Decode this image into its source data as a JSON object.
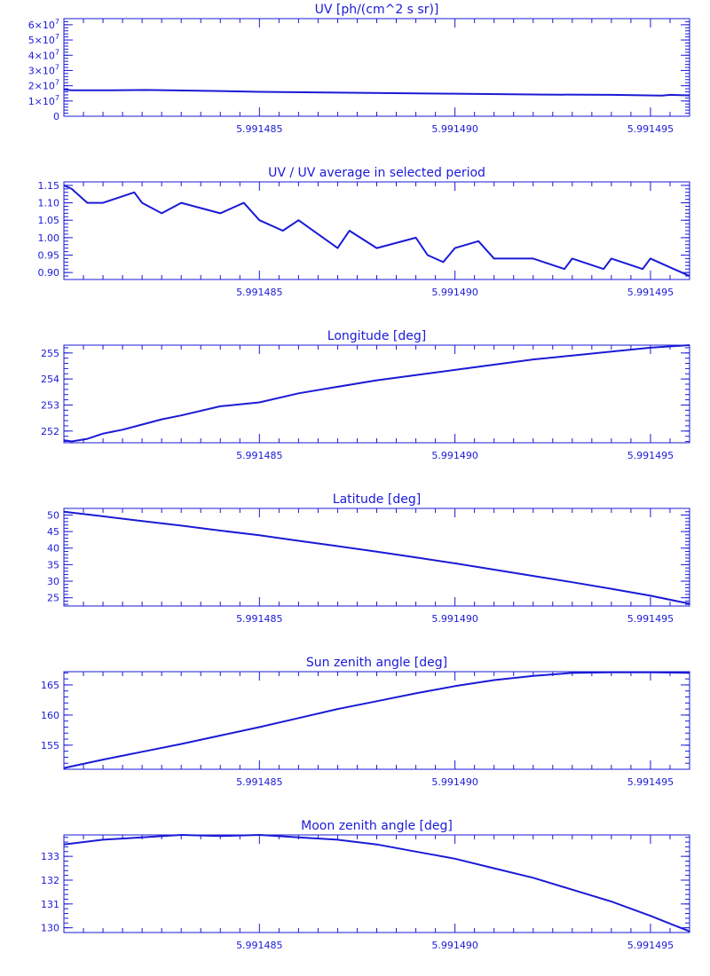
{
  "chart_data": [
    {
      "type": "line",
      "title": "UV [ph/(cm^2 s sr)]",
      "xlim": [
        5.99148,
        5.991496
      ],
      "ylim": [
        0,
        64000000.0
      ],
      "x_ticks": [
        {
          "value": 5.991485,
          "label": "5.991485"
        },
        {
          "value": 5.99149,
          "label": "5.991490"
        },
        {
          "value": 5.991495,
          "label": "5.991495"
        }
      ],
      "y_ticks": [
        {
          "value": 0,
          "label": "0"
        },
        {
          "value": 10000000.0,
          "label": "1×10^7"
        },
        {
          "value": 20000000.0,
          "label": "2×10^7"
        },
        {
          "value": 30000000.0,
          "label": "3×10^7"
        },
        {
          "value": 40000000.0,
          "label": "4×10^7"
        },
        {
          "value": 50000000.0,
          "label": "5×10^7"
        },
        {
          "value": 60000000.0,
          "label": "6×10^7"
        }
      ],
      "x": [
        5.99148,
        5.9914802,
        5.9914811,
        5.9914821,
        5.991484,
        5.991485,
        5.991487,
        5.991489,
        5.99149,
        5.9914923,
        5.991494,
        5.9914953,
        5.9914955,
        5.991496
      ],
      "y": [
        17500000.0,
        17000000.0,
        17000000.0,
        17200000.0,
        16500000.0,
        16000000.0,
        15500000.0,
        15000000.0,
        14800000.0,
        14200000.0,
        14000000.0,
        13500000.0,
        14000000.0,
        13700000.0
      ]
    },
    {
      "type": "line",
      "title": "UV / UV average in selected period",
      "xlim": [
        5.99148,
        5.991496
      ],
      "ylim": [
        0.88,
        1.16
      ],
      "x_ticks": [
        {
          "value": 5.991485,
          "label": "5.991485"
        },
        {
          "value": 5.99149,
          "label": "5.991490"
        },
        {
          "value": 5.991495,
          "label": "5.991495"
        }
      ],
      "y_ticks": [
        {
          "value": 0.9,
          "label": "0.90"
        },
        {
          "value": 0.95,
          "label": "0.95"
        },
        {
          "value": 1.0,
          "label": "1.00"
        },
        {
          "value": 1.05,
          "label": "1.05"
        },
        {
          "value": 1.1,
          "label": "1.10"
        },
        {
          "value": 1.15,
          "label": "1.15"
        }
      ],
      "x": [
        5.99148,
        5.9914802,
        5.9914806,
        5.991481,
        5.9914818,
        5.991482,
        5.9914825,
        5.991483,
        5.991484,
        5.9914846,
        5.991485,
        5.9914856,
        5.991486,
        5.991487,
        5.9914873,
        5.991488,
        5.991489,
        5.9914893,
        5.9914897,
        5.99149,
        5.9914906,
        5.991491,
        5.991492,
        5.9914928,
        5.991493,
        5.9914938,
        5.991494,
        5.9914948,
        5.991495,
        5.991496
      ],
      "y": [
        1.15,
        1.14,
        1.1,
        1.1,
        1.13,
        1.1,
        1.07,
        1.1,
        1.07,
        1.1,
        1.05,
        1.02,
        1.05,
        0.97,
        1.02,
        0.97,
        1.0,
        0.95,
        0.93,
        0.97,
        0.99,
        0.94,
        0.94,
        0.91,
        0.94,
        0.91,
        0.94,
        0.91,
        0.94,
        0.89
      ]
    },
    {
      "type": "line",
      "title": "Longitude [deg]",
      "xlim": [
        5.99148,
        5.991496
      ],
      "ylim": [
        251.55,
        255.3
      ],
      "x_ticks": [
        {
          "value": 5.991485,
          "label": "5.991485"
        },
        {
          "value": 5.99149,
          "label": "5.991490"
        },
        {
          "value": 5.991495,
          "label": "5.991495"
        }
      ],
      "y_ticks": [
        {
          "value": 252,
          "label": "252"
        },
        {
          "value": 253,
          "label": "253"
        },
        {
          "value": 254,
          "label": "254"
        },
        {
          "value": 255,
          "label": "255"
        }
      ],
      "x": [
        5.99148,
        5.9914802,
        5.9914806,
        5.991481,
        5.9914815,
        5.991482,
        5.9914825,
        5.991483,
        5.991484,
        5.991485,
        5.991486,
        5.991487,
        5.991488,
        5.991489,
        5.99149,
        5.991491,
        5.991492,
        5.991493,
        5.991494,
        5.991495,
        5.991496
      ],
      "y": [
        251.65,
        251.6,
        251.7,
        251.9,
        252.05,
        252.25,
        252.45,
        252.6,
        252.95,
        253.1,
        253.45,
        253.7,
        253.95,
        254.15,
        254.35,
        254.55,
        254.75,
        254.9,
        255.05,
        255.2,
        255.3
      ]
    },
    {
      "type": "line",
      "title": "Latitude [deg]",
      "xlim": [
        5.99148,
        5.991496
      ],
      "ylim": [
        22.5,
        52
      ],
      "x_ticks": [
        {
          "value": 5.991485,
          "label": "5.991485"
        },
        {
          "value": 5.99149,
          "label": "5.991490"
        },
        {
          "value": 5.991495,
          "label": "5.991495"
        }
      ],
      "y_ticks": [
        {
          "value": 25,
          "label": "25"
        },
        {
          "value": 30,
          "label": "30"
        },
        {
          "value": 35,
          "label": "35"
        },
        {
          "value": 40,
          "label": "40"
        },
        {
          "value": 45,
          "label": "45"
        },
        {
          "value": 50,
          "label": "50"
        }
      ],
      "x": [
        5.99148,
        5.991481,
        5.991482,
        5.991483,
        5.991484,
        5.991485,
        5.991486,
        5.991487,
        5.991488,
        5.991489,
        5.99149,
        5.991491,
        5.991492,
        5.991493,
        5.991494,
        5.991495,
        5.991496
      ],
      "y": [
        51,
        49.6,
        48.2,
        46.8,
        45.3,
        43.9,
        42.2,
        40.6,
        38.9,
        37.2,
        35.4,
        33.5,
        31.6,
        29.7,
        27.7,
        25.6,
        23.2
      ]
    },
    {
      "type": "line",
      "title": "Sun zenith angle [deg]",
      "xlim": [
        5.99148,
        5.991496
      ],
      "ylim": [
        151,
        167.2
      ],
      "x_ticks": [
        {
          "value": 5.991485,
          "label": "5.991485"
        },
        {
          "value": 5.99149,
          "label": "5.991490"
        },
        {
          "value": 5.991495,
          "label": "5.991495"
        }
      ],
      "y_ticks": [
        {
          "value": 155,
          "label": "155"
        },
        {
          "value": 160,
          "label": "160"
        },
        {
          "value": 165,
          "label": "165"
        }
      ],
      "x": [
        5.99148,
        5.991481,
        5.991482,
        5.991483,
        5.991484,
        5.991485,
        5.991486,
        5.991487,
        5.991488,
        5.991489,
        5.99149,
        5.991491,
        5.991492,
        5.991493,
        5.991494,
        5.991495,
        5.991496
      ],
      "y": [
        151.2,
        152.6,
        153.9,
        155.2,
        156.6,
        158.0,
        159.5,
        161.0,
        162.3,
        163.6,
        164.8,
        165.8,
        166.5,
        167.0,
        167.1,
        167.1,
        167.0
      ]
    },
    {
      "type": "line",
      "title": "Moon zenith angle [deg]",
      "xlim": [
        5.99148,
        5.991496
      ],
      "ylim": [
        129.8,
        133.9
      ],
      "x_ticks": [
        {
          "value": 5.991485,
          "label": "5.991485"
        },
        {
          "value": 5.99149,
          "label": "5.991490"
        },
        {
          "value": 5.991495,
          "label": "5.991495"
        }
      ],
      "y_ticks": [
        {
          "value": 130,
          "label": "130"
        },
        {
          "value": 131,
          "label": "131"
        },
        {
          "value": 132,
          "label": "132"
        },
        {
          "value": 133,
          "label": "133"
        }
      ],
      "x": [
        5.99148,
        5.991481,
        5.991482,
        5.991483,
        5.991484,
        5.991485,
        5.991486,
        5.991487,
        5.991488,
        5.991489,
        5.99149,
        5.991491,
        5.991492,
        5.991493,
        5.991494,
        5.991495,
        5.991496
      ],
      "y": [
        133.5,
        133.7,
        133.8,
        133.9,
        133.85,
        133.9,
        133.8,
        133.7,
        133.5,
        133.2,
        132.9,
        132.5,
        132.1,
        131.6,
        131.1,
        130.5,
        129.85
      ]
    }
  ]
}
